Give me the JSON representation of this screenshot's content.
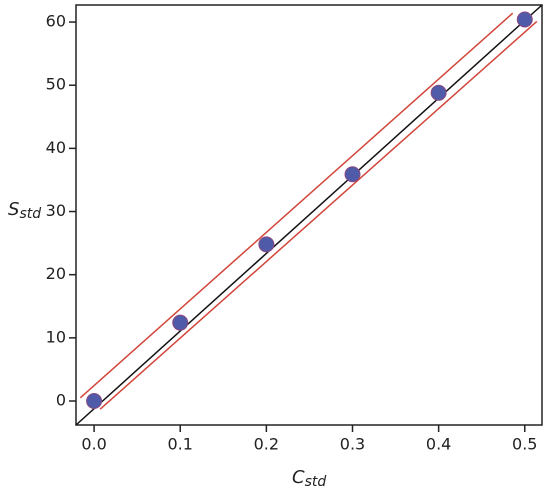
{
  "chart_data": {
    "type": "scatter",
    "x_label": {
      "main": "C",
      "sub": "std"
    },
    "y_label": {
      "main": "S",
      "sub": "std"
    },
    "x": [
      0,
      0.1,
      0.2,
      0.3,
      0.4,
      0.5
    ],
    "values": [
      0,
      12.4,
      24.8,
      35.9,
      48.8,
      60.4
    ],
    "color": "#4f5aa8",
    "lines": [
      {
        "color": "#111111",
        "x": [
          -0.021,
          0.52
        ],
        "values": [
          -3.8,
          62.7
        ]
      },
      {
        "color": "#d2453a",
        "x": [
          -0.016,
          0.486
        ],
        "values": [
          0.5,
          61.4
        ]
      },
      {
        "color": "#d2453a",
        "x": [
          0.007,
          0.514
        ],
        "values": [
          -1.3,
          60.1
        ]
      }
    ],
    "xlim": [
      -0.021,
      0.52
    ],
    "ylim": [
      -3.8,
      62.7
    ],
    "xticks": [
      {
        "value": 0,
        "label": "0.0"
      },
      0.1,
      0.2,
      0.3,
      0.4,
      0.5
    ],
    "yticks": [
      0,
      10,
      20,
      30,
      40,
      50,
      60
    ]
  }
}
